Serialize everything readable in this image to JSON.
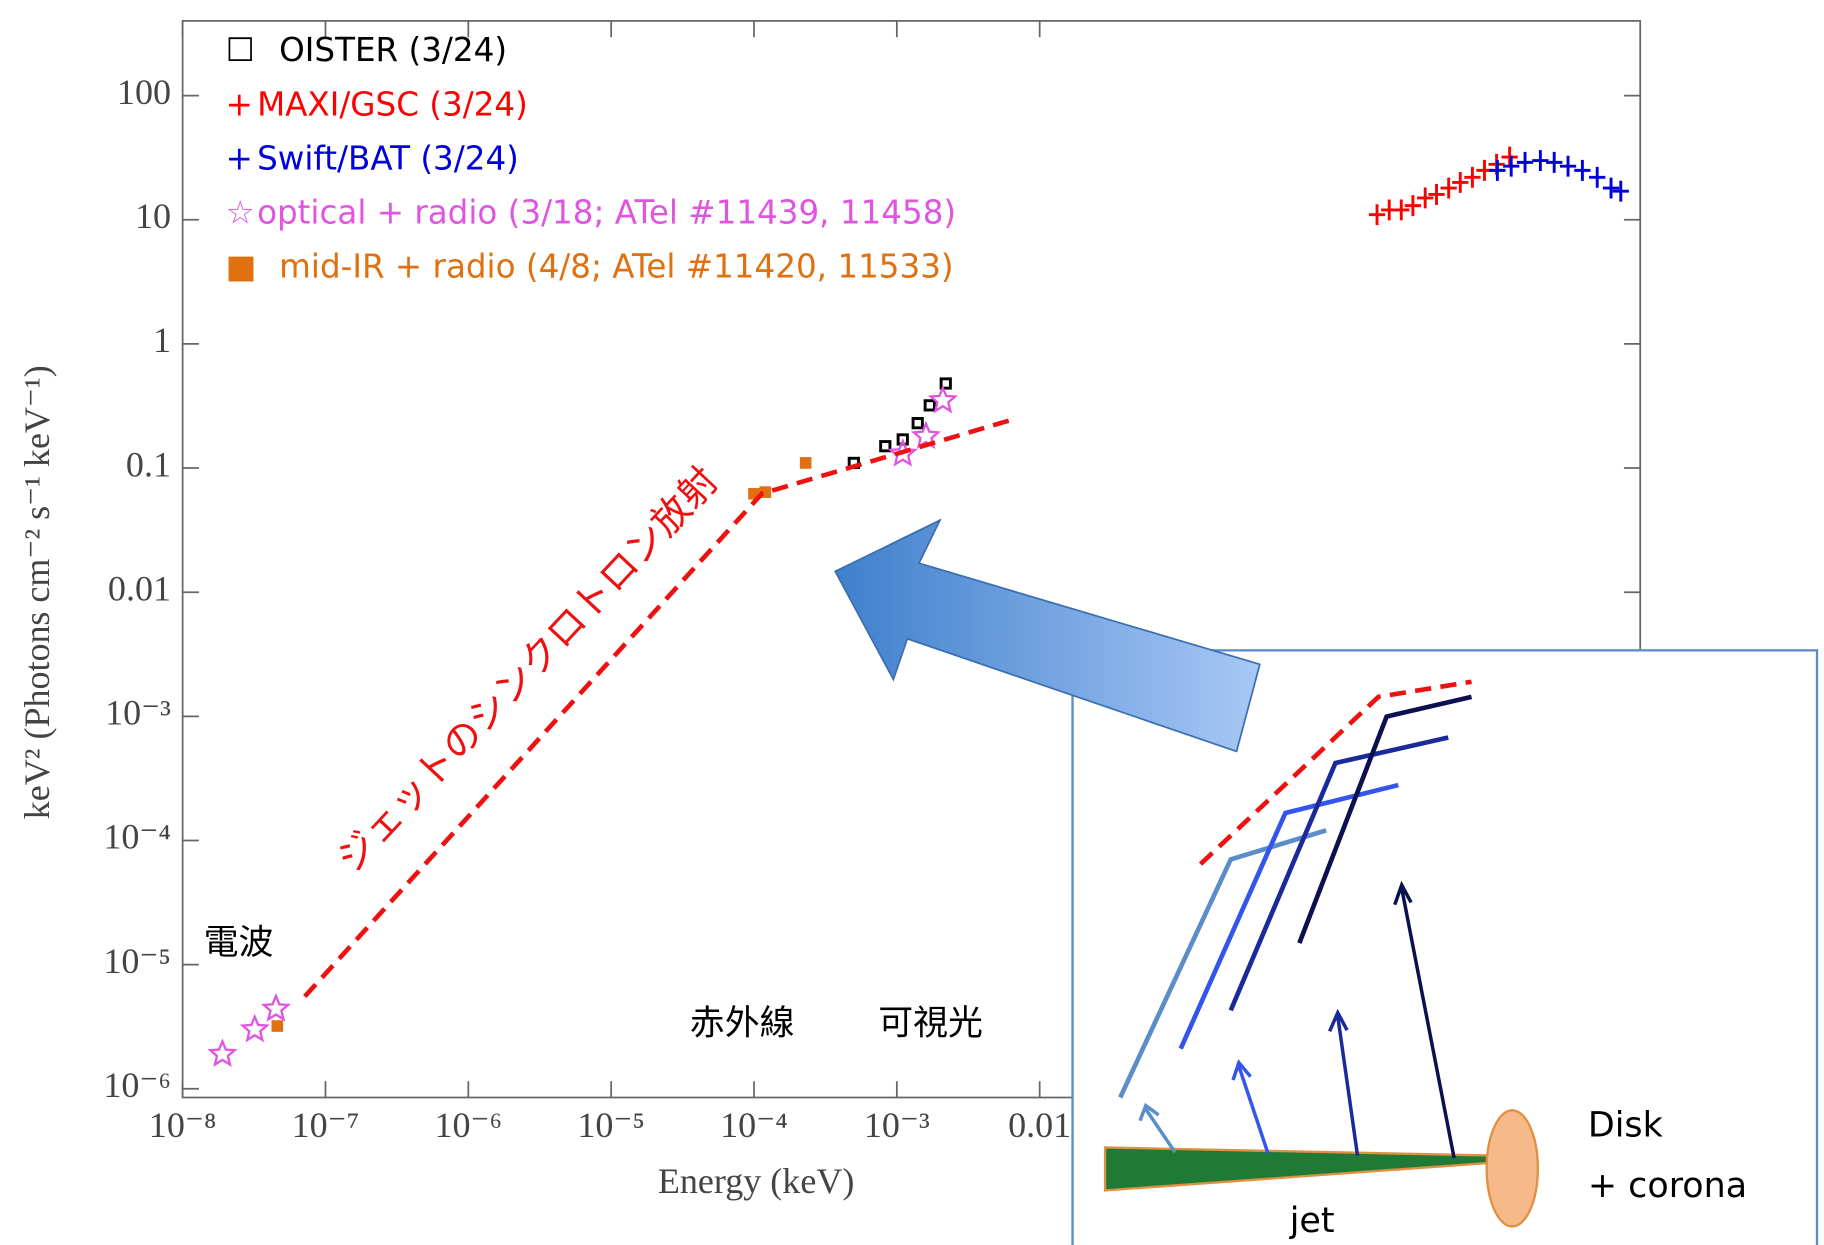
{
  "chart_data": {
    "type": "scatter",
    "xlabel": "Energy (keV)",
    "ylabel": "keV² (Photons cm⁻² s⁻¹ keV⁻¹)",
    "xscale": "log",
    "yscale": "log",
    "xlim": [
      1e-08,
      160
    ],
    "ylim": [
      8.5e-07,
      400
    ],
    "xticks": [
      {
        "value": 1e-08,
        "label": "10⁻⁸"
      },
      {
        "value": 1e-07,
        "label": "10⁻⁷"
      },
      {
        "value": 1e-06,
        "label": "10⁻⁶"
      },
      {
        "value": 1e-05,
        "label": "10⁻⁵"
      },
      {
        "value": 0.0001,
        "label": "10⁻⁴"
      },
      {
        "value": 0.001,
        "label": "10⁻³"
      },
      0.01
    ],
    "yticks": [
      {
        "value": 1e-06,
        "label": "10⁻⁶"
      },
      {
        "value": 1e-05,
        "label": "10⁻⁵"
      },
      {
        "value": 0.0001,
        "label": "10⁻⁴"
      },
      {
        "value": 0.001,
        "label": "10⁻³"
      },
      0.01,
      0.1,
      1,
      10,
      100
    ],
    "legend": "upper left",
    "series": [
      {
        "name": "OISTER (3/24)",
        "color": "#000000",
        "marker": "square-open",
        "legend_marker": "☐",
        "x": [
          0.0005,
          0.00083,
          0.0011,
          0.0014,
          0.0017,
          0.0022
        ],
        "values": [
          0.11,
          0.15,
          0.17,
          0.23,
          0.32,
          0.48
        ]
      },
      {
        "name": "MAXI/GSC (3/24)",
        "color": "#ff0000",
        "marker": "plus",
        "legend_marker": "+",
        "x": [
          2.3,
          2.8,
          3.4,
          4.1,
          5.0,
          6.0,
          7.3,
          8.8,
          10.7,
          13.0,
          15.8,
          19.5
        ],
        "values": [
          11,
          12,
          12,
          13,
          15,
          16,
          18,
          20,
          22,
          25,
          28,
          32
        ]
      },
      {
        "name": "Swift/BAT (3/24)",
        "color": "#0000dd",
        "marker": "plus",
        "legend_marker": "+",
        "x": [
          16,
          20,
          25,
          32,
          40,
          50,
          63,
          80,
          100,
          117
        ],
        "values": [
          25,
          27,
          29,
          30,
          29,
          27,
          25,
          22,
          18,
          17
        ]
      },
      {
        "name": "optical + radio (3/18; ATel #11439, 11458)",
        "color": "#e055e0",
        "marker": "star-open",
        "legend_marker": "☆",
        "x": [
          1.9e-08,
          3.2e-08,
          4.5e-08,
          0.0011,
          0.0016,
          0.0021
        ],
        "values": [
          1.9e-06,
          3e-06,
          4.4e-06,
          0.13,
          0.18,
          0.35
        ]
      },
      {
        "name": "mid-IR + radio (4/8; ATel #11420, 11533)",
        "color": "#e07010",
        "marker": "square",
        "legend_marker": "■",
        "x": [
          4.6e-08,
          0.0001,
          0.00012,
          0.00023
        ],
        "values": [
          3.2e-06,
          0.062,
          0.064,
          0.11
        ]
      }
    ],
    "annotations": [
      "ジェットのシンクロトロン放射",
      "電波",
      "赤外線",
      "可視光"
    ],
    "inset": {
      "labels": [
        "Disk",
        "+ corona",
        "jet"
      ]
    }
  }
}
